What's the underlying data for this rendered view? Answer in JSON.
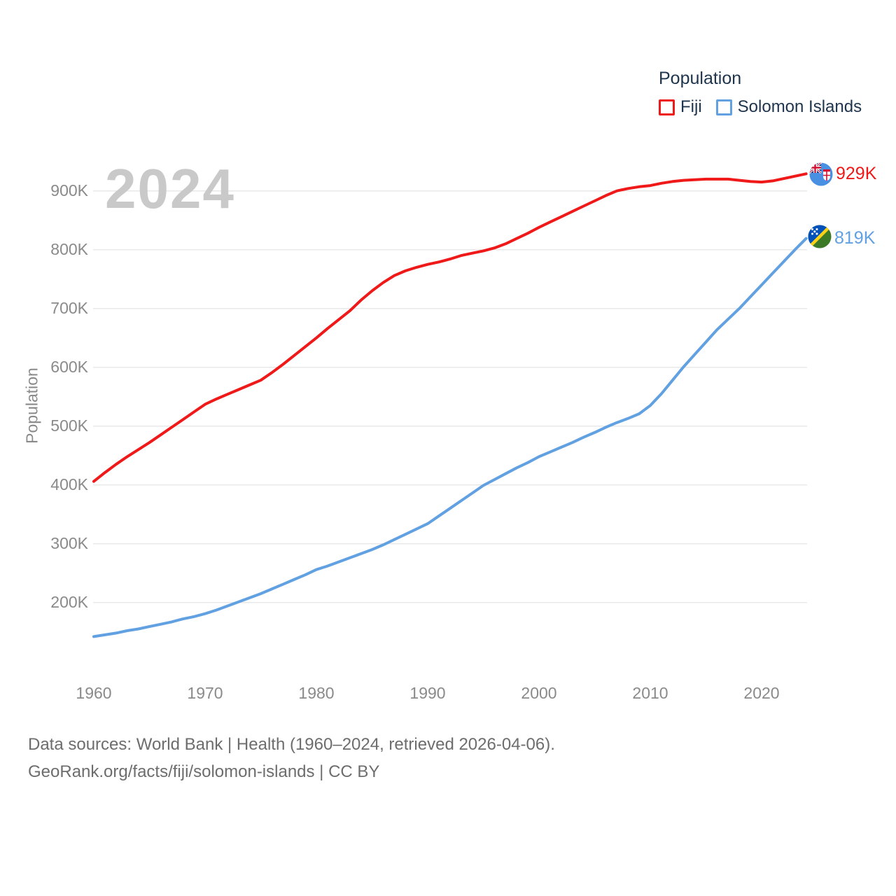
{
  "watermark": "2024",
  "legend": {
    "title": "Population",
    "items": [
      {
        "label": "Fiji",
        "color": "#ef1919"
      },
      {
        "label": "Solomon Islands",
        "color": "#61a0e1"
      }
    ]
  },
  "y_axis": {
    "title": "Population",
    "ticks": [
      {
        "label": "900K",
        "value": 900
      },
      {
        "label": "800K",
        "value": 800
      },
      {
        "label": "700K",
        "value": 700
      },
      {
        "label": "600K",
        "value": 600
      },
      {
        "label": "500K",
        "value": 500
      },
      {
        "label": "400K",
        "value": 400
      },
      {
        "label": "300K",
        "value": 300
      },
      {
        "label": "200K",
        "value": 200
      }
    ]
  },
  "x_axis": {
    "ticks": [
      {
        "label": "1960",
        "value": 1960
      },
      {
        "label": "1970",
        "value": 1970
      },
      {
        "label": "1980",
        "value": 1980
      },
      {
        "label": "1990",
        "value": 1990
      },
      {
        "label": "2000",
        "value": 2000
      },
      {
        "label": "2010",
        "value": 2010
      },
      {
        "label": "2020",
        "value": 2020
      }
    ]
  },
  "end_labels": [
    {
      "series": "Fiji",
      "text": "929K",
      "color": "#ef1919",
      "flag": "fiji-flag"
    },
    {
      "series": "Solomon Islands",
      "text": "819K",
      "color": "#61a0e1",
      "flag": "solomon-islands-flag"
    }
  ],
  "footer": {
    "line1": "Data sources: World Bank | Health (1960–2024, retrieved 2026-04-06).",
    "line2": "GeoRank.org/facts/fiji/solomon-islands | CC BY"
  },
  "colors": {
    "fiji_line": "#ef1919",
    "solomon_line": "#61a0e1",
    "gridline": "#e8e8e8",
    "tick_text": "#8a8a8a",
    "legend_text": "#1f344d",
    "watermark": "#c9c9c9",
    "footer_text": "#6d6d6d"
  },
  "chart_data": {
    "type": "line",
    "title": "Population",
    "xlabel": "",
    "ylabel": "Population",
    "units": "thousands of people",
    "x_range": [
      1960,
      2024
    ],
    "ylim_ticks": [
      200,
      900
    ],
    "grid": "horizontal-only",
    "legend_position": "top-right",
    "x": [
      1960,
      1961,
      1962,
      1963,
      1964,
      1965,
      1966,
      1967,
      1968,
      1969,
      1970,
      1971,
      1972,
      1973,
      1974,
      1975,
      1976,
      1977,
      1978,
      1979,
      1980,
      1981,
      1982,
      1983,
      1984,
      1985,
      1986,
      1987,
      1988,
      1989,
      1990,
      1991,
      1992,
      1993,
      1994,
      1995,
      1996,
      1997,
      1998,
      1999,
      2000,
      2001,
      2002,
      2003,
      2004,
      2005,
      2006,
      2007,
      2008,
      2009,
      2010,
      2011,
      2012,
      2013,
      2014,
      2015,
      2016,
      2017,
      2018,
      2019,
      2020,
      2021,
      2022,
      2023,
      2024
    ],
    "series": [
      {
        "name": "Fiji",
        "color": "#ef1919",
        "end_value_label": "929K",
        "values": [
          406,
          421,
          435,
          448,
          460,
          472,
          485,
          498,
          511,
          524,
          537,
          546,
          554,
          562,
          570,
          578,
          591,
          605,
          620,
          635,
          650,
          666,
          681,
          696,
          714,
          730,
          744,
          756,
          764,
          770,
          775,
          779,
          784,
          790,
          794,
          798,
          803,
          810,
          819,
          828,
          838,
          847,
          856,
          865,
          874,
          883,
          892,
          900,
          904,
          907,
          909,
          913,
          916,
          918,
          919,
          920,
          920,
          920,
          918,
          916,
          915,
          917,
          921,
          925,
          929
        ]
      },
      {
        "name": "Solomon Islands",
        "color": "#61a0e1",
        "end_value_label": "819K",
        "values": [
          142,
          145,
          148,
          152,
          155,
          159,
          163,
          167,
          172,
          176,
          181,
          187,
          194,
          201,
          208,
          215,
          223,
          231,
          239,
          247,
          256,
          262,
          269,
          276,
          283,
          290,
          298,
          307,
          316,
          325,
          334,
          347,
          360,
          373,
          386,
          399,
          409,
          419,
          429,
          438,
          448,
          456,
          464,
          472,
          481,
          489,
          498,
          506,
          513,
          521,
          535,
          555,
          578,
          601,
          622,
          643,
          664,
          682,
          700,
          720,
          740,
          760,
          780,
          800,
          819
        ]
      }
    ]
  }
}
